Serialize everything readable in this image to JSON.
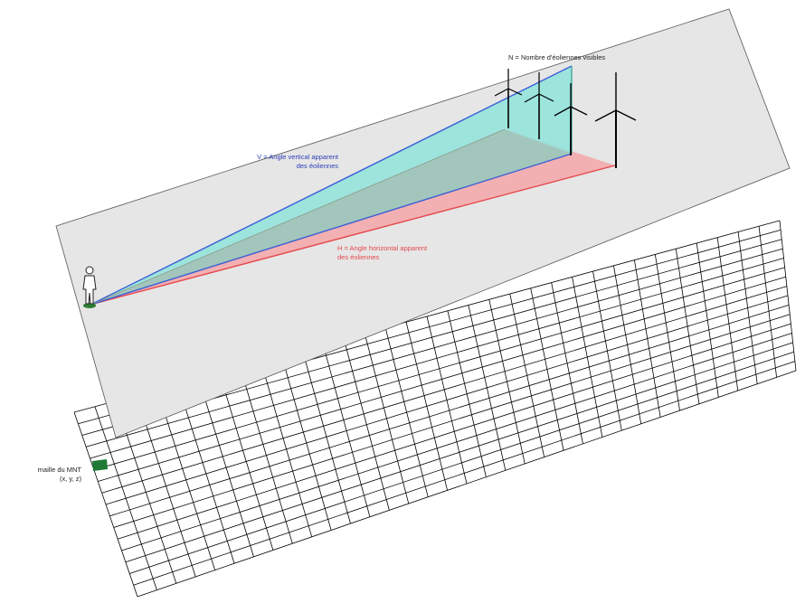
{
  "labels": {
    "n_label": "N = Nombre d'éoliennes visibles",
    "v_label_line1": "V = Angle vertical apparent",
    "v_label_line2": "des éoliennes",
    "h_label_line1": "H = Angle horizontal apparent",
    "h_label_line2": "des éoliennes",
    "mnt_label_line1": "maille du MNT",
    "mnt_label_line2": "(x, y, z)"
  },
  "colors": {
    "plane_fill": "#e6e6e6",
    "vertical_fan": "#8fe3da",
    "vertical_line": "#3b5fd6",
    "horizontal_fan": "#f3a6a8",
    "horizontal_line": "#e5484d",
    "grid_line": "#000000",
    "mnt_cell": "#1f7a35",
    "v_text": "#2c3fb8",
    "h_text": "#e5484d",
    "ground_dot": "#2e7d32"
  },
  "grid": {
    "columns": 34,
    "rows": 16
  },
  "turbines": {
    "count": 4
  }
}
